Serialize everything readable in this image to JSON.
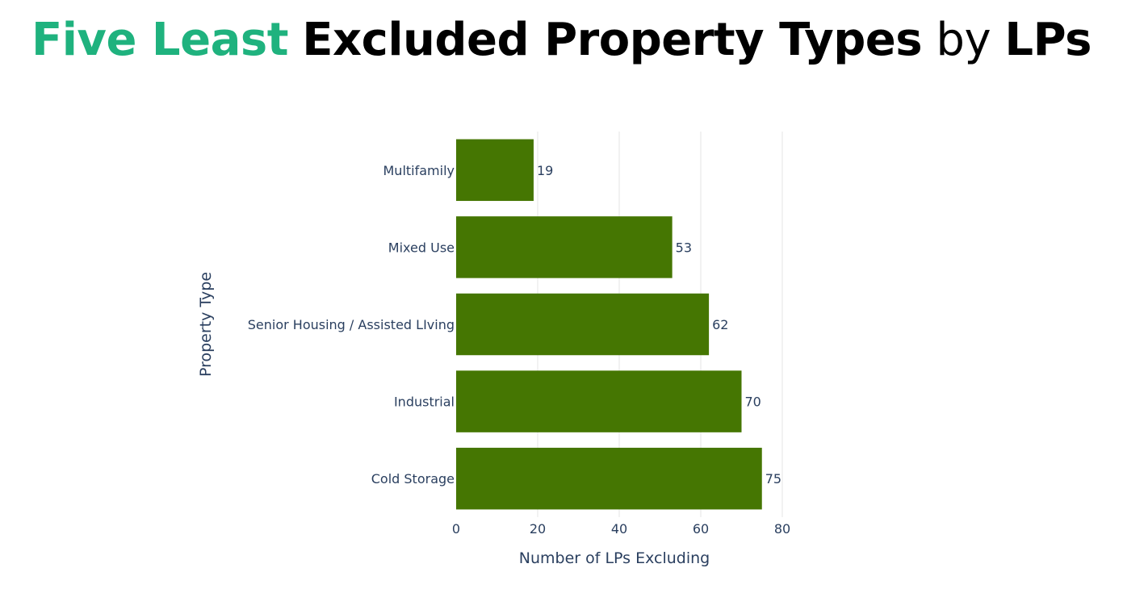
{
  "title": {
    "part1": "Five Least",
    "part2": "Excluded Property Types",
    "part3": "by",
    "part4": "LPs"
  },
  "colors": {
    "accent": "#1fb27e",
    "bar": "#457602",
    "grid": "#e5e5e5",
    "axis_text": "#2a3f5f"
  },
  "chart_data": {
    "type": "bar",
    "orientation": "horizontal",
    "categories": [
      "Multifamily",
      "Mixed Use",
      "Senior Housing / Assisted LIving",
      "Industrial",
      "Cold Storage"
    ],
    "values": [
      19,
      53,
      62,
      70,
      75
    ],
    "xlabel": "Number of LPs Excluding",
    "ylabel": "Property Type",
    "xlim": [
      0,
      80
    ],
    "xticks": [
      0,
      20,
      40,
      60,
      80
    ],
    "grid": true,
    "legend": "none"
  }
}
